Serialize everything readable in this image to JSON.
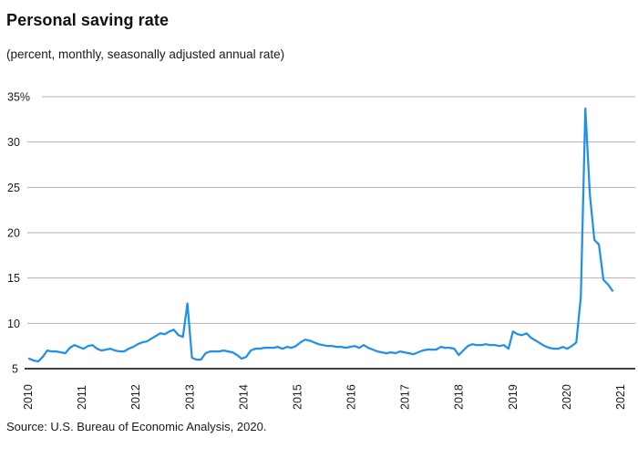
{
  "header": {
    "title": "Personal saving rate",
    "subtitle": "(percent, monthly, seasonally adjusted annual rate)"
  },
  "footer": {
    "source": "Source: U.S. Bureau of Economic Analysis, 2020."
  },
  "chart_data": {
    "type": "line",
    "title": "Personal saving rate",
    "subtitle": "(percent, monthly, seasonally adjusted annual rate)",
    "unit": "percent, seasonally adjusted annual rate",
    "frequency": "monthly",
    "x_start": "2010-01",
    "x_end": "2020-10",
    "series": [
      {
        "name": "Personal saving rate",
        "values": [
          6.1,
          5.9,
          5.8,
          6.3,
          7.0,
          6.9,
          6.9,
          6.8,
          6.7,
          7.3,
          7.6,
          7.4,
          7.2,
          7.5,
          7.6,
          7.2,
          7.0,
          7.1,
          7.2,
          7.0,
          6.9,
          6.9,
          7.2,
          7.4,
          7.7,
          7.9,
          8.0,
          8.3,
          8.6,
          8.9,
          8.8,
          9.1,
          9.3,
          8.7,
          8.5,
          12.2,
          6.2,
          6.0,
          6.0,
          6.7,
          6.9,
          6.9,
          6.9,
          7.0,
          6.9,
          6.8,
          6.5,
          6.1,
          6.3,
          7.0,
          7.2,
          7.2,
          7.3,
          7.3,
          7.3,
          7.4,
          7.2,
          7.4,
          7.3,
          7.5,
          7.9,
          8.2,
          8.1,
          7.9,
          7.7,
          7.6,
          7.5,
          7.5,
          7.4,
          7.4,
          7.3,
          7.4,
          7.5,
          7.3,
          7.6,
          7.3,
          7.1,
          6.9,
          6.8,
          6.7,
          6.8,
          6.7,
          6.9,
          6.8,
          6.7,
          6.6,
          6.8,
          7.0,
          7.1,
          7.1,
          7.1,
          7.4,
          7.3,
          7.3,
          7.2,
          6.5,
          7.0,
          7.5,
          7.7,
          7.6,
          7.6,
          7.7,
          7.6,
          7.6,
          7.5,
          7.6,
          7.2,
          9.1,
          8.8,
          8.7,
          8.9,
          8.4,
          8.1,
          7.8,
          7.5,
          7.3,
          7.2,
          7.2,
          7.4,
          7.2,
          7.5,
          7.9,
          12.9,
          33.7,
          24.2,
          19.2,
          18.7,
          14.8,
          14.3,
          13.6
        ]
      }
    ],
    "ylim": [
      5,
      35
    ],
    "y_ticks": [
      {
        "value": 35,
        "label": "35%"
      },
      {
        "value": 30,
        "label": "30"
      },
      {
        "value": 25,
        "label": "25"
      },
      {
        "value": 20,
        "label": "20"
      },
      {
        "value": 15,
        "label": "15"
      },
      {
        "value": 10,
        "label": "10"
      },
      {
        "value": 5,
        "label": "5"
      }
    ],
    "x_tick_labels": [
      "2010",
      "2011",
      "2012",
      "2013",
      "2014",
      "2015",
      "2016",
      "2017",
      "2018",
      "2019",
      "2020",
      "2021"
    ],
    "grid": "horizontal",
    "legend": "none",
    "colors": {
      "line": "#2190ea",
      "grid": "#b2b2b2",
      "axis": "#000000",
      "text": "#1a1a1a",
      "background": "#ffffff"
    }
  }
}
